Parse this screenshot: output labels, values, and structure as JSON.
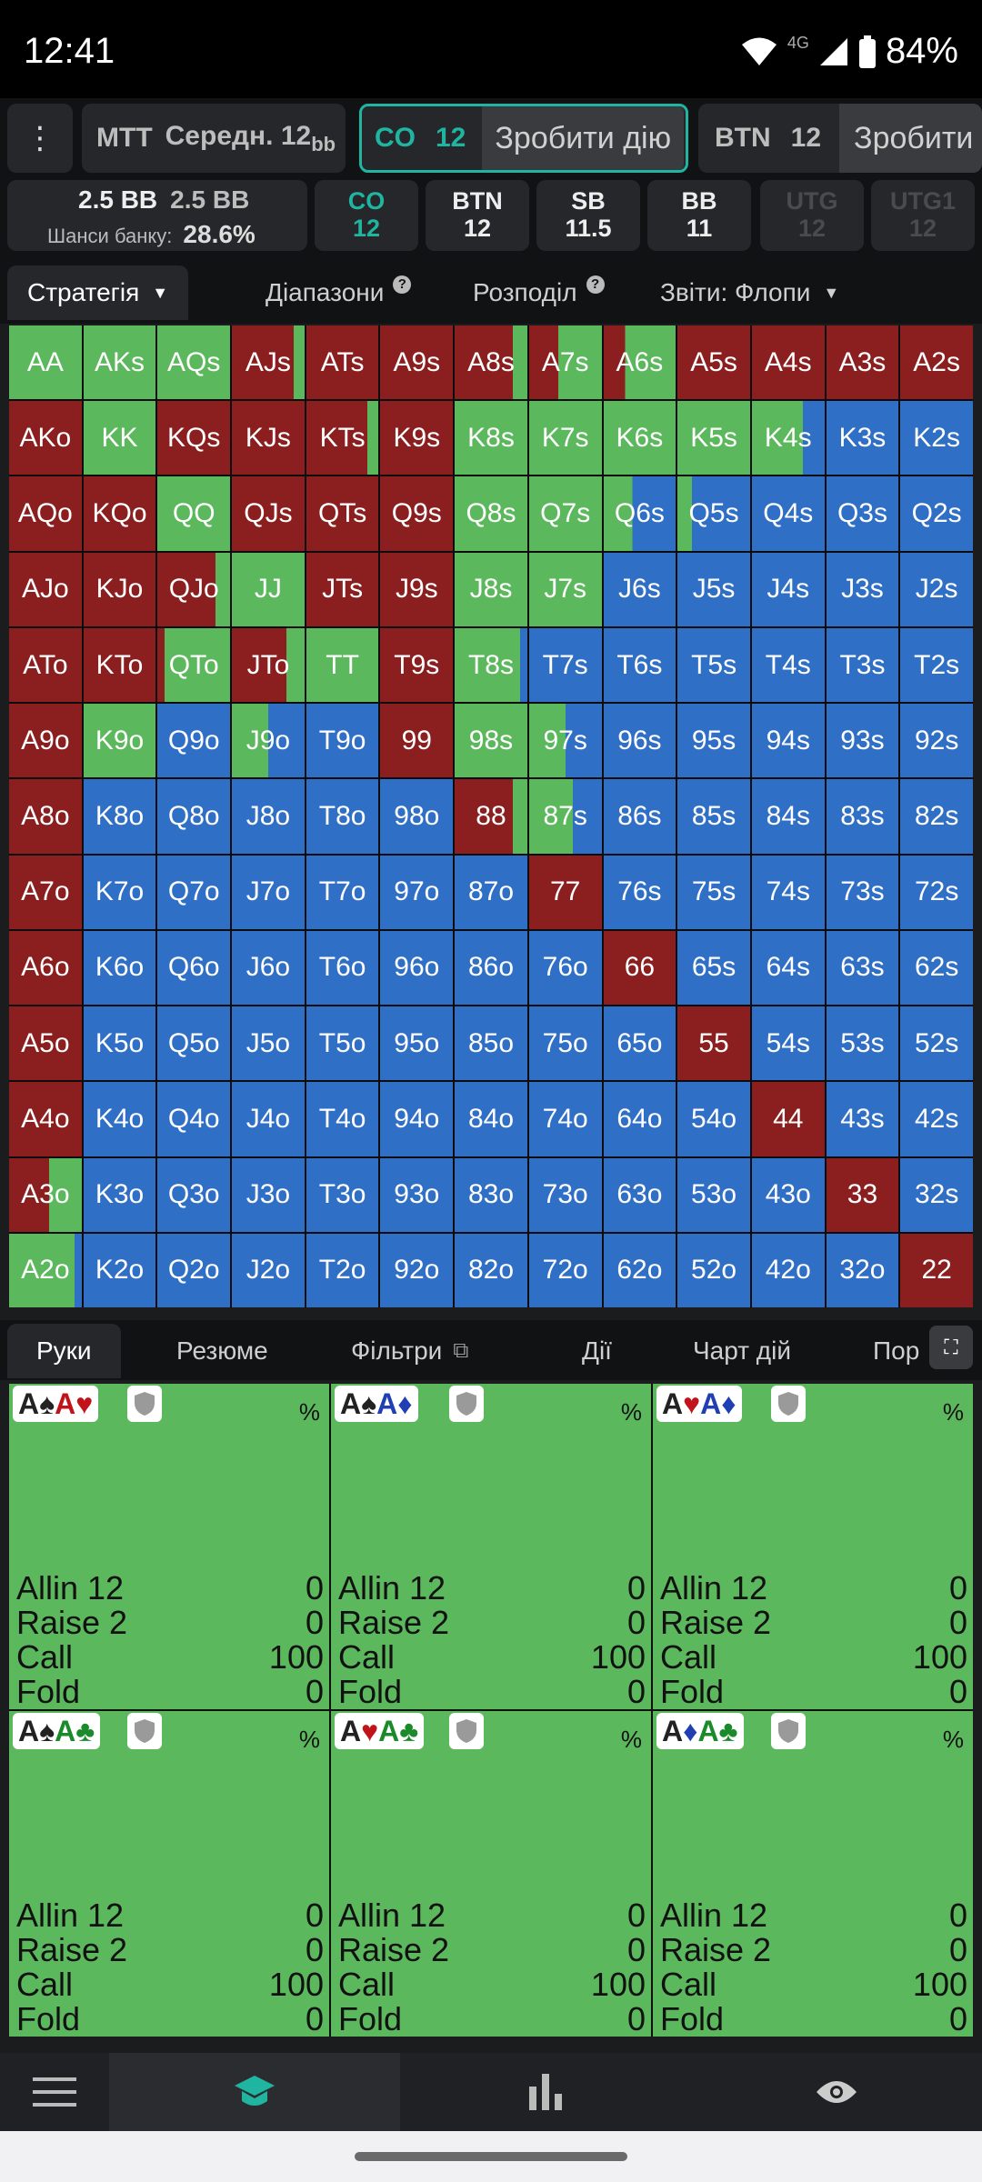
{
  "status_bar": {
    "time": "12:41",
    "network": "4G",
    "battery": "84%"
  },
  "top_bar": {
    "spot1": {
      "label": "MTT",
      "sub": "Середн. 12",
      "unit": "bb"
    },
    "spot2": {
      "pos": "CO",
      "stack": "12",
      "action": "Зробити дію"
    },
    "spot3": {
      "pos": "BTN",
      "stack": "12",
      "action": "Зробити дію"
    }
  },
  "info_bar": {
    "pot_a": "2.5 BB",
    "pot_b": "2.5 BB",
    "equity_label": "Шанси банку:",
    "equity_value": "28.6%",
    "seats": [
      {
        "pos": "CO",
        "stack": "12",
        "state": "active"
      },
      {
        "pos": "BTN",
        "stack": "12",
        "state": "normal"
      },
      {
        "pos": "SB",
        "stack": "11.5",
        "state": "normal"
      },
      {
        "pos": "BB",
        "stack": "11",
        "state": "normal"
      },
      {
        "pos": "UTG",
        "stack": "12",
        "state": "dim"
      },
      {
        "pos": "UTG1",
        "stack": "12",
        "state": "dim"
      }
    ]
  },
  "tabs": {
    "strategy": "Стратегія",
    "ranges": "Діапазони",
    "distribution": "Розподіл",
    "reports": "Звіти: Флопи"
  },
  "colors": {
    "fold": "#2f6fc6",
    "call": "#5cb85c",
    "raise": "#8b1f1f"
  },
  "matrix": {
    "rows": [
      [
        "AA",
        "AKs",
        "AQs",
        "AJs",
        "ATs",
        "A9s",
        "A8s",
        "A7s",
        "A6s",
        "A5s",
        "A4s",
        "A3s",
        "A2s"
      ],
      [
        "AKo",
        "KK",
        "KQs",
        "KJs",
        "KTs",
        "K9s",
        "K8s",
        "K7s",
        "K6s",
        "K5s",
        "K4s",
        "K3s",
        "K2s"
      ],
      [
        "AQo",
        "KQo",
        "QQ",
        "QJs",
        "QTs",
        "Q9s",
        "Q8s",
        "Q7s",
        "Q6s",
        "Q5s",
        "Q4s",
        "Q3s",
        "Q2s"
      ],
      [
        "AJo",
        "KJo",
        "QJo",
        "JJ",
        "JTs",
        "J9s",
        "J8s",
        "J7s",
        "J6s",
        "J5s",
        "J4s",
        "J3s",
        "J2s"
      ],
      [
        "ATo",
        "KTo",
        "QTo",
        "JTo",
        "TT",
        "T9s",
        "T8s",
        "T7s",
        "T6s",
        "T5s",
        "T4s",
        "T3s",
        "T2s"
      ],
      [
        "A9o",
        "K9o",
        "Q9o",
        "J9o",
        "T9o",
        "99",
        "98s",
        "97s",
        "96s",
        "95s",
        "94s",
        "93s",
        "92s"
      ],
      [
        "A8o",
        "K8o",
        "Q8o",
        "J8o",
        "T8o",
        "98o",
        "88",
        "87s",
        "86s",
        "85s",
        "84s",
        "83s",
        "82s"
      ],
      [
        "A7o",
        "K7o",
        "Q7o",
        "J7o",
        "T7o",
        "97o",
        "87o",
        "77",
        "76s",
        "75s",
        "74s",
        "73s",
        "72s"
      ],
      [
        "A6o",
        "K6o",
        "Q6o",
        "J6o",
        "T6o",
        "96o",
        "86o",
        "76o",
        "66",
        "65s",
        "64s",
        "63s",
        "62s"
      ],
      [
        "A5o",
        "K5o",
        "Q5o",
        "J5o",
        "T5o",
        "95o",
        "85o",
        "75o",
        "65o",
        "55",
        "54s",
        "53s",
        "52s"
      ],
      [
        "A4o",
        "K4o",
        "Q4o",
        "J4o",
        "T4o",
        "94o",
        "84o",
        "74o",
        "64o",
        "54o",
        "44",
        "43s",
        "42s"
      ],
      [
        "A3o",
        "K3o",
        "Q3o",
        "J3o",
        "T3o",
        "93o",
        "83o",
        "73o",
        "63o",
        "53o",
        "43o",
        "33",
        "32s"
      ],
      [
        "A2o",
        "K2o",
        "Q2o",
        "J2o",
        "T2o",
        "92o",
        "82o",
        "72o",
        "62o",
        "52o",
        "42o",
        "32o",
        "22"
      ]
    ],
    "mix": [
      [
        "c",
        "c",
        "c",
        "r.85c.15",
        "r",
        "r",
        "r.8c.2",
        "r.4c.6",
        "r.3c.7",
        "r",
        "r",
        "r",
        "r"
      ],
      [
        "r",
        "c",
        "r",
        "r",
        "r.85c.15",
        "r",
        "c",
        "c",
        "c",
        "c",
        "c.7f.3",
        "f",
        "f"
      ],
      [
        "r",
        "r",
        "c",
        "r",
        "r",
        "r",
        "c",
        "c",
        "c.4f.6",
        "c.2f.8",
        "f",
        "f",
        "f"
      ],
      [
        "r",
        "r",
        "r.8c.2",
        "c",
        "r",
        "r",
        "c",
        "c",
        "f",
        "f",
        "f",
        "f",
        "f"
      ],
      [
        "r",
        "r",
        "r.1c.9",
        "r.75c.25",
        "c",
        "r",
        "c.9f.1",
        "f",
        "f",
        "f",
        "f",
        "f",
        "f"
      ],
      [
        "r",
        "c",
        "f",
        "c.5f.5",
        "f",
        "r",
        "c",
        "c.5f.5",
        "f",
        "f",
        "f",
        "f",
        "f"
      ],
      [
        "r",
        "f",
        "f",
        "f",
        "f",
        "f",
        "r.8c.2",
        "c.6f.4",
        "f",
        "f",
        "f",
        "f",
        "f"
      ],
      [
        "r",
        "f",
        "f",
        "f",
        "f",
        "f",
        "f",
        "r",
        "f",
        "f",
        "f",
        "f",
        "f"
      ],
      [
        "r",
        "f",
        "f",
        "f",
        "f",
        "f",
        "f",
        "f",
        "r",
        "f",
        "f",
        "f",
        "f"
      ],
      [
        "r",
        "f",
        "f",
        "f",
        "f",
        "f",
        "f",
        "f",
        "f",
        "r",
        "f",
        "f",
        "f"
      ],
      [
        "r",
        "f",
        "f",
        "f",
        "f",
        "f",
        "f",
        "f",
        "f",
        "f",
        "r",
        "f",
        "f"
      ],
      [
        "r.55c.45",
        "f",
        "f",
        "f",
        "f",
        "f",
        "f",
        "f",
        "f",
        "f",
        "f",
        "r",
        "f"
      ],
      [
        "c.9f.1",
        "f",
        "f",
        "f",
        "f",
        "f",
        "f",
        "f",
        "f",
        "f",
        "f",
        "f",
        "r"
      ]
    ]
  },
  "hand_tabs": {
    "hands": "Руки",
    "summary": "Резюме",
    "filters": "Фільтри",
    "actions": "Дії",
    "action_chart": "Чарт дій",
    "more": "Пор"
  },
  "hands": [
    {
      "r1": "A",
      "s1": "♠",
      "c1": "#222",
      "r2": "A",
      "s2": "♥",
      "c2": "#c3131a",
      "pct": "%",
      "allin": "Allin 12",
      "allin_v": "0",
      "raise": "Raise 2",
      "raise_v": "0",
      "call": "Call",
      "call_v": "100",
      "fold": "Fold",
      "fold_v": "0"
    },
    {
      "r1": "A",
      "s1": "♠",
      "c1": "#222",
      "r2": "A",
      "s2": "♦",
      "c2": "#1f3fb3",
      "pct": "%",
      "allin": "Allin 12",
      "allin_v": "0",
      "raise": "Raise 2",
      "raise_v": "0",
      "call": "Call",
      "call_v": "100",
      "fold": "Fold",
      "fold_v": "0"
    },
    {
      "r1": "A",
      "s1": "♥",
      "c1": "#c3131a",
      "r2": "A",
      "s2": "♦",
      "c2": "#1f3fb3",
      "pct": "%",
      "allin": "Allin 12",
      "allin_v": "0",
      "raise": "Raise 2",
      "raise_v": "0",
      "call": "Call",
      "call_v": "100",
      "fold": "Fold",
      "fold_v": "0"
    },
    {
      "r1": "A",
      "s1": "♠",
      "c1": "#222",
      "r2": "A",
      "s2": "♣",
      "c2": "#1a8a2a",
      "pct": "%",
      "allin": "Allin 12",
      "allin_v": "0",
      "raise": "Raise 2",
      "raise_v": "0",
      "call": "Call",
      "call_v": "100",
      "fold": "Fold",
      "fold_v": "0"
    },
    {
      "r1": "A",
      "s1": "♥",
      "c1": "#c3131a",
      "r2": "A",
      "s2": "♣",
      "c2": "#1a8a2a",
      "pct": "%",
      "allin": "Allin 12",
      "allin_v": "0",
      "raise": "Raise 2",
      "raise_v": "0",
      "call": "Call",
      "call_v": "100",
      "fold": "Fold",
      "fold_v": "0"
    },
    {
      "r1": "A",
      "s1": "♦",
      "c1": "#1f3fb3",
      "r2": "A",
      "s2": "♣",
      "c2": "#1a8a2a",
      "pct": "%",
      "allin": "Allin 12",
      "allin_v": "0",
      "raise": "Raise 2",
      "raise_v": "0",
      "call": "Call",
      "call_v": "100",
      "fold": "Fold",
      "fold_v": "0"
    }
  ],
  "nav": [
    {
      "name": "menu-icon"
    },
    {
      "name": "study-icon"
    },
    {
      "name": "stats-icon"
    },
    {
      "name": "eye-icon"
    }
  ]
}
